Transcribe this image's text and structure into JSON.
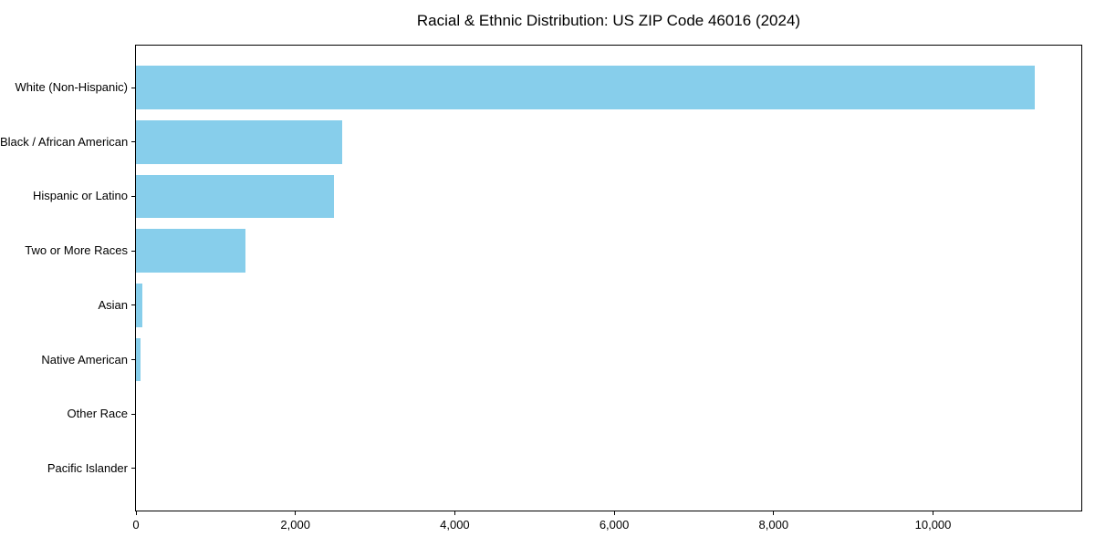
{
  "figure": {
    "background": "#ffffff"
  },
  "chart_data": {
    "type": "bar",
    "orientation": "horizontal",
    "title": "Racial & Ethnic Distribution: US ZIP Code 46016 (2024)",
    "categories": [
      "White (Non-Hispanic)",
      "Black / African American",
      "Hispanic or Latino",
      "Two or More Races",
      "Asian",
      "Native American",
      "Other Race",
      "Pacific Islander"
    ],
    "values": [
      11280,
      2590,
      2480,
      1370,
      80,
      55,
      0,
      0
    ],
    "xlabel": "",
    "ylabel": "",
    "xlim": [
      0,
      11860
    ],
    "xticks": [
      0,
      2000,
      4000,
      6000,
      8000,
      10000
    ],
    "xtick_labels": [
      "0",
      "2,000",
      "4,000",
      "6,000",
      "8,000",
      "10,000"
    ],
    "bar_color": "#87CEEB",
    "axis_color": "#000000",
    "text_color": "#000000",
    "grid": false,
    "legend": null,
    "largest_bar_first": true
  }
}
